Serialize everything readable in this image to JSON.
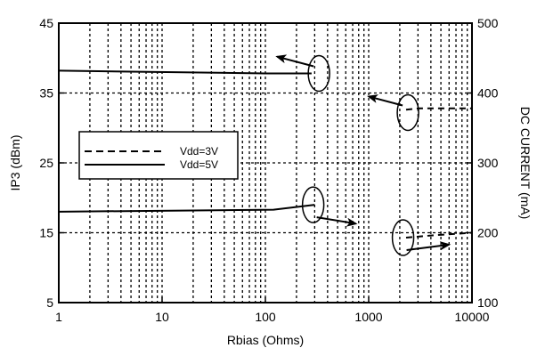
{
  "chart_data": {
    "type": "line",
    "xlabel": "Rbias (Ohms)",
    "ylabel": "IP3 (dBm)",
    "y2label": "DC CURRENT (mA)",
    "xscale": "log",
    "xlim": [
      1,
      10000
    ],
    "ylim": [
      5,
      45
    ],
    "y2lim": [
      100,
      500
    ],
    "x_ticks": [
      1,
      10,
      100,
      1000,
      10000
    ],
    "x_tick_labels": [
      "1",
      "10",
      "100",
      "1000",
      "10000"
    ],
    "y_ticks": [
      5,
      15,
      25,
      35,
      45
    ],
    "y_tick_labels": [
      "5",
      "15",
      "25",
      "35",
      "45"
    ],
    "y2_ticks": [
      100,
      200,
      300,
      400,
      500
    ],
    "y2_tick_labels": [
      "100",
      "200",
      "300",
      "400",
      "500"
    ],
    "grid": true,
    "legend": {
      "position": "left",
      "entries": [
        {
          "label": "Vdd=3V",
          "style": "dashed"
        },
        {
          "label": "Vdd=5V",
          "style": "solid"
        }
      ]
    },
    "series": [
      {
        "name": "Vdd=5V",
        "axis": "left",
        "style": "solid",
        "x": [
          1,
          100,
          280
        ],
        "y": [
          38.2,
          37.8,
          37.8
        ]
      },
      {
        "name": "Vdd=5V",
        "axis": "right",
        "style": "solid",
        "x": [
          1,
          120,
          300
        ],
        "y": [
          230,
          233,
          240
        ]
      },
      {
        "name": "Vdd=3V",
        "axis": "left",
        "style": "dashed",
        "x": [
          2300,
          3000,
          10000
        ],
        "y": [
          32.6,
          32.8,
          32.8
        ]
      },
      {
        "name": "Vdd=3V",
        "axis": "right",
        "style": "dashed",
        "x": [
          2300,
          4000,
          10000
        ],
        "y": [
          193,
          196,
          200
        ]
      }
    ],
    "annotations": [
      {
        "circle": {
          "x": 330,
          "y": 37.8,
          "axis": "left"
        },
        "arrow_to": {
          "x": 130,
          "y": 40.2
        },
        "direction": "left"
      },
      {
        "circle": {
          "x": 290,
          "y": 240,
          "axis": "right"
        },
        "arrow_to": {
          "x": 750,
          "y": 213
        },
        "direction": "right"
      },
      {
        "circle": {
          "x": 2400,
          "y": 32.2,
          "axis": "left"
        },
        "arrow_to": {
          "x": 1000,
          "y": 34.5
        },
        "direction": "left"
      },
      {
        "circle": {
          "x": 2150,
          "y": 193,
          "axis": "right"
        },
        "arrow_to": {
          "x": 6000,
          "y": 183
        },
        "direction": "right"
      }
    ]
  }
}
